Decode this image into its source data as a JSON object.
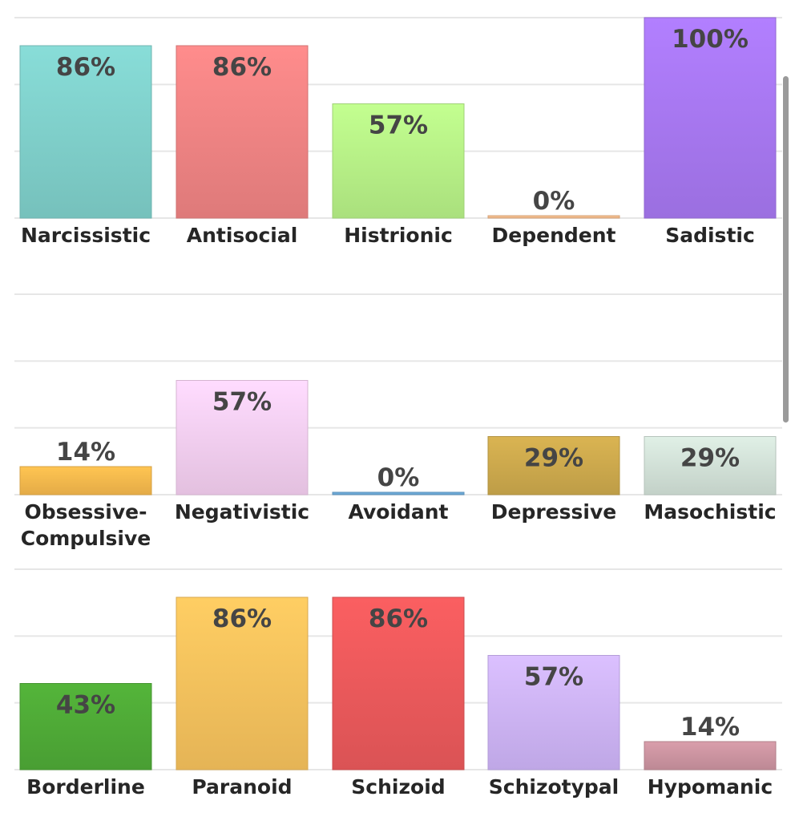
{
  "chart_data": [
    {
      "type": "bar",
      "ylim": [
        0,
        100
      ],
      "grid": true,
      "categories": [
        "Narcissistic",
        "Antisocial",
        "Histrionic",
        "Dependent",
        "Sadistic"
      ],
      "values": [
        86,
        86,
        57,
        0,
        100
      ],
      "value_labels": [
        "86%",
        "86%",
        "57%",
        "0%",
        "100%"
      ],
      "colors": [
        "#7ecdc8",
        "#ec8282",
        "#b5ee85",
        "#f1b98a",
        "#a576ee"
      ]
    },
    {
      "type": "bar",
      "ylim": [
        0,
        100
      ],
      "grid": true,
      "categories": [
        [
          "Obsessive-",
          "Compulsive"
        ],
        "Negativistic",
        "Avoidant",
        "Depressive",
        "Masochistic"
      ],
      "values": [
        14,
        57,
        0,
        29,
        29
      ],
      "value_labels": [
        "14%",
        "57%",
        "0%",
        "29%",
        "29%"
      ],
      "colors": [
        "#f3b64c",
        "#f2cced",
        "#6ba6d4",
        "#caa74c",
        "#cfded5"
      ]
    },
    {
      "type": "bar",
      "ylim": [
        0,
        100
      ],
      "grid": true,
      "categories": [
        "Borderline",
        "Paranoid",
        "Schizoid",
        "Schizotypal",
        "Hypomanic"
      ],
      "values": [
        43,
        86,
        86,
        57,
        14
      ],
      "value_labels": [
        "43%",
        "86%",
        "86%",
        "57%",
        "14%"
      ],
      "colors": [
        "#4ea836",
        "#f4bf5c",
        "#e8585a",
        "#cbb2f5",
        "#c9929e"
      ]
    }
  ]
}
